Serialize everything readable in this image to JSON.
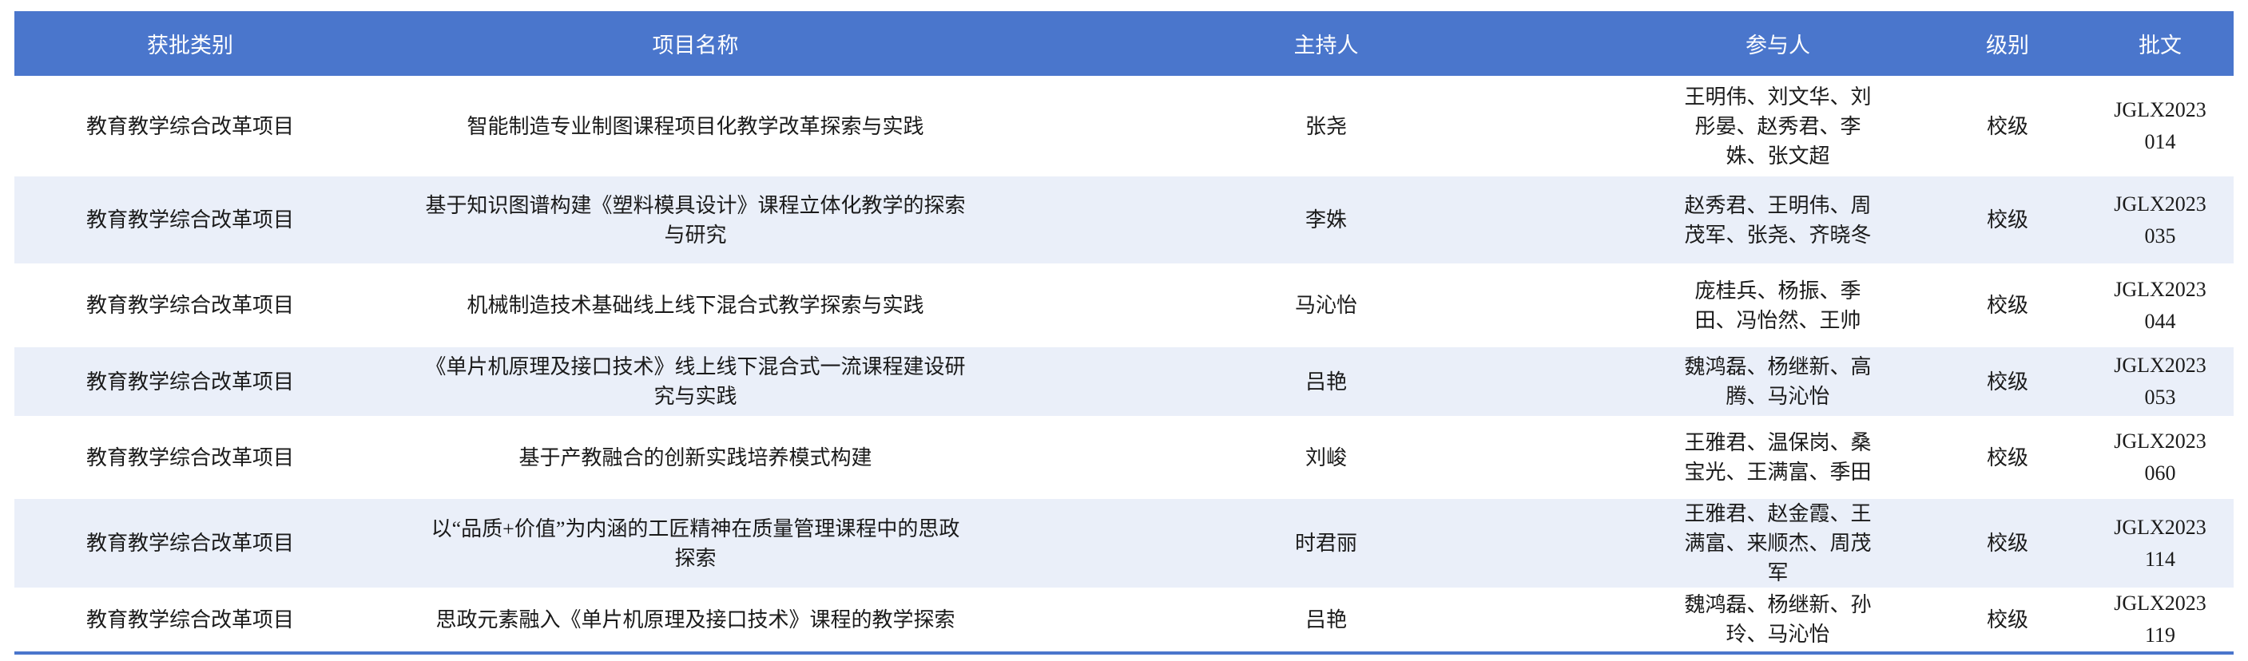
{
  "headers": [
    "获批类别",
    "项目名称",
    "主持人",
    "参与人",
    "级别",
    "批文"
  ],
  "colors": {
    "header_bg": "#4a76cc",
    "alt_row_bg": "#eaeff9"
  },
  "rows": [
    {
      "category": "教育教学综合改革项目",
      "name": "智能制造专业制图课程项目化教学改革探索与实践",
      "host": "张尧",
      "participants": "王明伟、刘文华、刘彤晏、赵秀君、李姝、张文超",
      "level": "校级",
      "doc": "JGLX2023014"
    },
    {
      "category": "教育教学综合改革项目",
      "name": "基于知识图谱构建《塑料模具设计》课程立体化教学的探索与研究",
      "host": "李姝",
      "participants": "赵秀君、王明伟、周茂军、张尧、齐晓冬",
      "level": "校级",
      "doc": "JGLX2023035"
    },
    {
      "category": "教育教学综合改革项目",
      "name": "机械制造技术基础线上线下混合式教学探索与实践",
      "host": "马沁怡",
      "participants": "庞桂兵、杨振、季田、冯怡然、王帅",
      "level": "校级",
      "doc": "JGLX2023044"
    },
    {
      "category": "教育教学综合改革项目",
      "name": "《单片机原理及接口技术》线上线下混合式一流课程建设研究与实践",
      "host": "吕艳",
      "participants": "魏鸿磊、杨继新、高腾、马沁怡",
      "level": "校级",
      "doc": "JGLX2023053"
    },
    {
      "category": "教育教学综合改革项目",
      "name": "基于产教融合的创新实践培养模式构建",
      "host": "刘峻",
      "participants": "王雅君、温保岗、桑宝光、王满富、季田",
      "level": "校级",
      "doc": "JGLX2023060"
    },
    {
      "category": "教育教学综合改革项目",
      "name": "以“品质+价值”为内涵的工匠精神在质量管理课程中的思政探索",
      "host": "时君丽",
      "participants": "王雅君、赵金霞、王满富、来顺杰、周茂军",
      "level": "校级",
      "doc": "JGLX2023114"
    },
    {
      "category": "教育教学综合改革项目",
      "name": "思政元素融入《单片机原理及接口技术》课程的教学探索",
      "host": "吕艳",
      "participants": "魏鸿磊、杨继新、孙玲、马沁怡",
      "level": "校级",
      "doc": "JGLX2023119"
    }
  ]
}
